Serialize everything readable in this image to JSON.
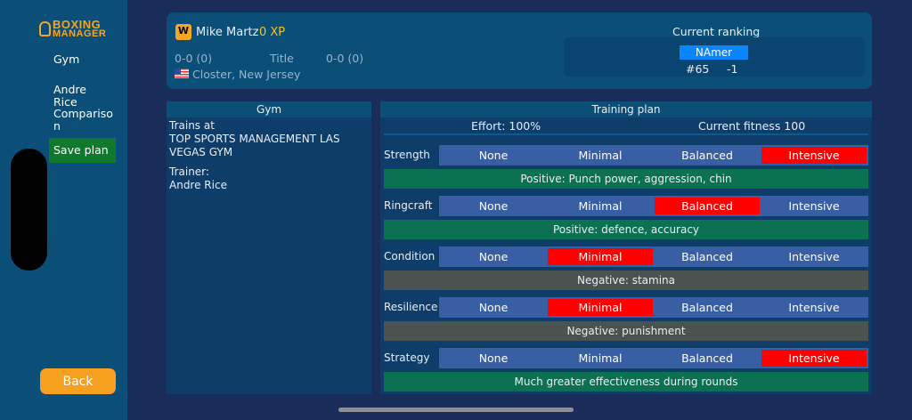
{
  "sidebar": {
    "logo": [
      "BOXING",
      "MANAGER"
    ],
    "items": [
      "Gym",
      "Andre Rice",
      "Compariso n",
      "Save plan"
    ],
    "back": "Back"
  },
  "boxer": {
    "badge": "W",
    "name": "Mike Martz",
    "xp": "0 XP",
    "record": "0-0 (0)",
    "title_label": "Title",
    "title_record": "0-0 (0)",
    "location": "Closter, New Jersey"
  },
  "ranking": {
    "title": "Current ranking",
    "region": "NAmer",
    "position": "#65",
    "change": "-1"
  },
  "gym": {
    "header": "Gym",
    "trains_at_label": "Trains at",
    "gym_name": "TOP SPORTS MANAGEMENT LAS VEGAS GYM",
    "trainer_label": "Trainer:",
    "trainer": "Andre Rice"
  },
  "training": {
    "header": "Training plan",
    "effort": "Effort: 100%",
    "fitness": "Current fitness 100",
    "options": [
      "None",
      "Minimal",
      "Balanced",
      "Intensive"
    ],
    "rows": [
      {
        "label": "Strength",
        "selected": 3,
        "desc": "Positive: Punch power, aggression, chin",
        "type": "positive"
      },
      {
        "label": "Ringcraft",
        "selected": 2,
        "desc": "Positive: defence, accuracy",
        "type": "positive"
      },
      {
        "label": "Condition",
        "selected": 1,
        "desc": "Negative: stamina",
        "type": "negative"
      },
      {
        "label": "Resilience",
        "selected": 1,
        "desc": "Negative: punishment",
        "type": "negative"
      },
      {
        "label": "Strategy",
        "selected": 3,
        "desc": "Much greater effectiveness during rounds",
        "type": "positive"
      }
    ]
  },
  "colors": {
    "positive": "#0b7150",
    "negative": "#4b5350",
    "selected": "#ff0000",
    "save": "#0f7a2e",
    "accent": "#f5a01e"
  }
}
